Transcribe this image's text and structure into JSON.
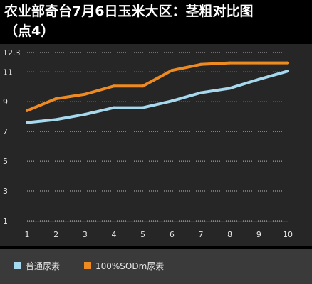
{
  "title_line1": "农业部奇台7月6日玉米大区：茎粗对比图",
  "title_line2": "（点4）",
  "colors": {
    "background": "#000000",
    "plot_background": "#262626",
    "legend_background": "#3a3a3a",
    "grid": "#bdbdbd",
    "series_1": "#a6d8ee",
    "series_2": "#ee8a22",
    "text": "#e6e6e6"
  },
  "chart_data": {
    "type": "line",
    "title": "农业部奇台7月6日玉米大区：茎粗对比图（点4）",
    "xlabel": "",
    "ylabel": "",
    "x": [
      1,
      2,
      3,
      4,
      5,
      6,
      7,
      8,
      9,
      10
    ],
    "x_tick_labels": [
      "1",
      "2",
      "3",
      "4",
      "5",
      "6",
      "7",
      "8",
      "9",
      "10"
    ],
    "y_tick_labels": [
      "1",
      "3",
      "5",
      "7",
      "9",
      "11",
      "12.3"
    ],
    "y_ticks": [
      1,
      3,
      5,
      7,
      9,
      11,
      12.3
    ],
    "ylim": [
      1,
      12.3
    ],
    "grid": "horizontal dotted",
    "legend_position": "bottom-left",
    "series": [
      {
        "name": "普通尿素",
        "color": "#a6d8ee",
        "values": [
          7.6,
          7.8,
          8.15,
          8.6,
          8.6,
          9.05,
          9.6,
          9.9,
          10.5,
          11.05
        ]
      },
      {
        "name": "100%SODm尿素",
        "color": "#ee8a22",
        "values": [
          8.4,
          9.2,
          9.5,
          10.05,
          10.05,
          11.1,
          11.5,
          11.6,
          11.6,
          11.6
        ]
      }
    ]
  }
}
